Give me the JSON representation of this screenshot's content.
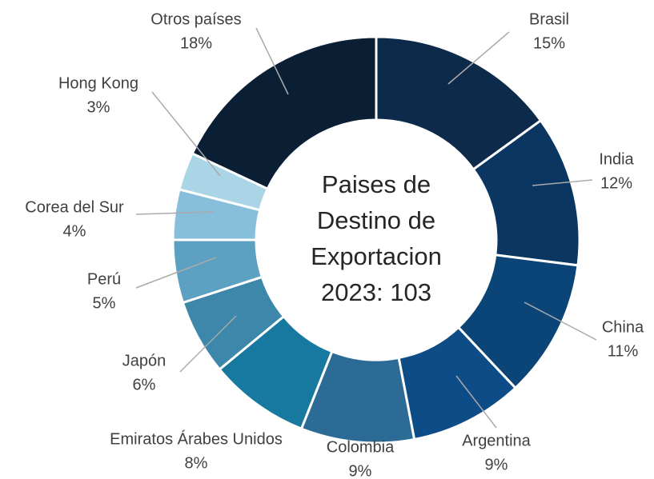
{
  "chart_data": {
    "type": "donut",
    "title": "Paises de Destino de Exportacion 2023: 103",
    "categories": [
      "Brasil",
      "India",
      "China",
      "Argentina",
      "Colombia",
      "Emiratos Árabes Unidos",
      "Japón",
      "Perú",
      "Corea del Sur",
      "Hong Kong",
      "Otros países"
    ],
    "values": [
      15,
      12,
      11,
      9,
      9,
      8,
      6,
      5,
      4,
      3,
      18
    ],
    "value_labels": [
      "15%",
      "12%",
      "11%",
      "9%",
      "9%",
      "8%",
      "6%",
      "5%",
      "4%",
      "3%",
      "18%"
    ],
    "colors": [
      "#0e2a4b",
      "#0a3661",
      "#0b4476",
      "#0d4c86",
      "#2b6b96",
      "#17799f",
      "#3d87ab",
      "#5ca1c1",
      "#87bfdb",
      "#aad5e7",
      "#0b1f34"
    ]
  }
}
